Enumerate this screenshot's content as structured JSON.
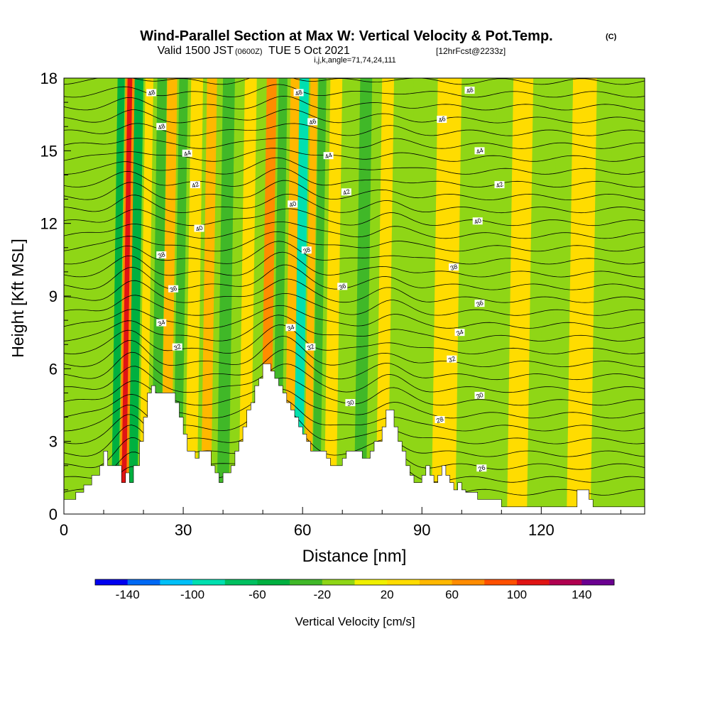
{
  "title": {
    "main": "Wind-Parallel Section at Max W: Vertical Velocity & Pot.Temp.",
    "copyright": "(C)",
    "valid_prefix": "Valid 1500 JST",
    "valid_utc": "(0600Z)",
    "valid_suffix": "TUE 5 Oct 2021",
    "forecast": "[12hrFcst@2233z]",
    "params": "i,j,k,angle=71,74,24,111"
  },
  "colors": {
    "background_field": "#8fd616",
    "updraft": "#fff200",
    "strong_updraft": "#ffc20e",
    "downdraft": "#47b82e",
    "terrain": "#ffffff",
    "isentrope": "#000000"
  },
  "chart_data": {
    "type": "heatmap",
    "xlabel": "Distance [nm]",
    "ylabel": "Height [Kft MSL]",
    "xlim": [
      0,
      146
    ],
    "ylim": [
      0,
      18
    ],
    "xticks": [
      "0",
      "30",
      "60",
      "90",
      "120"
    ],
    "yticks": [
      "0",
      "3",
      "6",
      "9",
      "12",
      "15",
      "18"
    ],
    "terrain_profile": [
      [
        0,
        0.6
      ],
      [
        3,
        0.6
      ],
      [
        3,
        0.9
      ],
      [
        5,
        0.9
      ],
      [
        5,
        1.2
      ],
      [
        7,
        1.2
      ],
      [
        7,
        1.6
      ],
      [
        9,
        1.6
      ],
      [
        9,
        2.0
      ],
      [
        10,
        2.0
      ],
      [
        10,
        2.6
      ],
      [
        11,
        2.6
      ],
      [
        11,
        2.0
      ],
      [
        14.5,
        2.0
      ],
      [
        14.5,
        1.3
      ],
      [
        15.5,
        1.3
      ],
      [
        15.5,
        1.7
      ],
      [
        16.5,
        1.7
      ],
      [
        16.5,
        1.3
      ],
      [
        17.5,
        1.3
      ],
      [
        17.5,
        2.0
      ],
      [
        19,
        2.0
      ],
      [
        19,
        3.0
      ],
      [
        20,
        3.0
      ],
      [
        20,
        4.0
      ],
      [
        21,
        4.0
      ],
      [
        21,
        5.0
      ],
      [
        22,
        5.0
      ],
      [
        22,
        5.3
      ],
      [
        23,
        5.3
      ],
      [
        23,
        5.0
      ],
      [
        28,
        5.0
      ],
      [
        28,
        4.6
      ],
      [
        29,
        4.6
      ],
      [
        29,
        4.0
      ],
      [
        30,
        4.0
      ],
      [
        30,
        3.3
      ],
      [
        31,
        3.3
      ],
      [
        31,
        2.6
      ],
      [
        33,
        2.6
      ],
      [
        33,
        2.3
      ],
      [
        34,
        2.3
      ],
      [
        34,
        2.6
      ],
      [
        37,
        2.6
      ],
      [
        37,
        2.0
      ],
      [
        38,
        2.0
      ],
      [
        38,
        1.7
      ],
      [
        39,
        1.7
      ],
      [
        39,
        1.3
      ],
      [
        40,
        1.3
      ],
      [
        40,
        1.7
      ],
      [
        42,
        1.7
      ],
      [
        42,
        2.0
      ],
      [
        43,
        2.0
      ],
      [
        43,
        2.6
      ],
      [
        44,
        2.6
      ],
      [
        44,
        3.0
      ],
      [
        45,
        3.0
      ],
      [
        45,
        3.6
      ],
      [
        46,
        3.6
      ],
      [
        46,
        4.3
      ],
      [
        47,
        4.3
      ],
      [
        47,
        4.6
      ],
      [
        48,
        4.6
      ],
      [
        48,
        5.3
      ],
      [
        49,
        5.3
      ],
      [
        49,
        5.6
      ],
      [
        50,
        5.6
      ],
      [
        50,
        6.2
      ],
      [
        52,
        6.2
      ],
      [
        52,
        5.9
      ],
      [
        53,
        5.9
      ],
      [
        53,
        5.6
      ],
      [
        54,
        5.6
      ],
      [
        54,
        5.3
      ],
      [
        55,
        5.3
      ],
      [
        55,
        5.0
      ],
      [
        56,
        5.0
      ],
      [
        56,
        4.6
      ],
      [
        57,
        4.6
      ],
      [
        57,
        4.3
      ],
      [
        58,
        4.3
      ],
      [
        58,
        4.0
      ],
      [
        59,
        4.0
      ],
      [
        59,
        3.6
      ],
      [
        60,
        3.6
      ],
      [
        60,
        3.3
      ],
      [
        61,
        3.3
      ],
      [
        61,
        3.0
      ],
      [
        62,
        3.0
      ],
      [
        62,
        2.6
      ],
      [
        66,
        2.6
      ],
      [
        66,
        2.3
      ],
      [
        67,
        2.3
      ],
      [
        67,
        2.0
      ],
      [
        70,
        2.0
      ],
      [
        70,
        2.3
      ],
      [
        71,
        2.3
      ],
      [
        71,
        2.6
      ],
      [
        75,
        2.6
      ],
      [
        75,
        2.3
      ],
      [
        77,
        2.3
      ],
      [
        77,
        2.6
      ],
      [
        78,
        2.6
      ],
      [
        78,
        3.0
      ],
      [
        80,
        3.0
      ],
      [
        80,
        3.6
      ],
      [
        81,
        3.6
      ],
      [
        81,
        4.3
      ],
      [
        83,
        4.3
      ],
      [
        83,
        3.6
      ],
      [
        84,
        3.6
      ],
      [
        84,
        3.0
      ],
      [
        85,
        3.0
      ],
      [
        85,
        2.6
      ],
      [
        86,
        2.6
      ],
      [
        86,
        2.0
      ],
      [
        87,
        2.0
      ],
      [
        87,
        1.6
      ],
      [
        88,
        1.6
      ],
      [
        88,
        1.3
      ],
      [
        90,
        1.3
      ],
      [
        90,
        1.6
      ],
      [
        91,
        1.6
      ],
      [
        91,
        2.0
      ],
      [
        92,
        2.0
      ],
      [
        92,
        1.6
      ],
      [
        93,
        1.6
      ],
      [
        93,
        1.3
      ],
      [
        94,
        1.3
      ],
      [
        94,
        1.6
      ],
      [
        95,
        1.6
      ],
      [
        95,
        2.0
      ],
      [
        96,
        2.0
      ],
      [
        96,
        1.6
      ],
      [
        97,
        1.6
      ],
      [
        97,
        1.3
      ],
      [
        98,
        1.3
      ],
      [
        98,
        1.0
      ],
      [
        99,
        1.0
      ],
      [
        99,
        1.3
      ],
      [
        100,
        1.3
      ],
      [
        100,
        1.0
      ],
      [
        101,
        1.0
      ],
      [
        101,
        0.9
      ],
      [
        104,
        0.9
      ],
      [
        104,
        0.6
      ],
      [
        110,
        0.6
      ],
      [
        110,
        0.3
      ],
      [
        129,
        0.3
      ],
      [
        129,
        1.0
      ],
      [
        132,
        1.0
      ],
      [
        132,
        0.6
      ],
      [
        133,
        0.6
      ],
      [
        133,
        0.3
      ],
      [
        146,
        0.3
      ]
    ],
    "isentropes": {
      "levels": [
        26,
        28,
        30,
        32,
        34,
        36,
        38,
        40,
        42,
        44,
        46,
        48
      ],
      "labels": [
        {
          "text": "48",
          "x": 22,
          "y": 17.4
        },
        {
          "text": "48",
          "x": 24.5,
          "y": 16.0
        },
        {
          "text": "44",
          "x": 31,
          "y": 14.9
        },
        {
          "text": "42",
          "x": 33,
          "y": 13.6
        },
        {
          "text": "40",
          "x": 34,
          "y": 11.8
        },
        {
          "text": "38",
          "x": 24.5,
          "y": 10.7
        },
        {
          "text": "36",
          "x": 27.5,
          "y": 9.3
        },
        {
          "text": "34",
          "x": 24.5,
          "y": 7.9
        },
        {
          "text": "32",
          "x": 28.5,
          "y": 6.9
        },
        {
          "text": "48",
          "x": 59,
          "y": 17.4
        },
        {
          "text": "46",
          "x": 62.5,
          "y": 16.2
        },
        {
          "text": "44",
          "x": 66.5,
          "y": 14.8
        },
        {
          "text": "42",
          "x": 71,
          "y": 13.3
        },
        {
          "text": "40",
          "x": 57.5,
          "y": 12.8
        },
        {
          "text": "38",
          "x": 61,
          "y": 10.9
        },
        {
          "text": "36",
          "x": 70,
          "y": 9.4
        },
        {
          "text": "34",
          "x": 57,
          "y": 7.7
        },
        {
          "text": "32",
          "x": 62,
          "y": 6.9
        },
        {
          "text": "30",
          "x": 72,
          "y": 4.6
        },
        {
          "text": "28",
          "x": 94.5,
          "y": 3.9
        },
        {
          "text": "26",
          "x": 105,
          "y": 1.9
        },
        {
          "text": "48",
          "x": 102,
          "y": 17.5
        },
        {
          "text": "46",
          "x": 95,
          "y": 16.3
        },
        {
          "text": "44",
          "x": 104.5,
          "y": 15.0
        },
        {
          "text": "42",
          "x": 109.5,
          "y": 13.6
        },
        {
          "text": "40",
          "x": 104,
          "y": 12.1
        },
        {
          "text": "38",
          "x": 98,
          "y": 10.2
        },
        {
          "text": "36",
          "x": 104.5,
          "y": 8.7
        },
        {
          "text": "34",
          "x": 99.5,
          "y": 7.5
        },
        {
          "text": "32",
          "x": 97.5,
          "y": 6.4
        },
        {
          "text": "30",
          "x": 104.5,
          "y": 4.9
        }
      ]
    },
    "shading_bands": [
      {
        "x": 13.5,
        "w": 1.8,
        "value": -60,
        "kind": "down"
      },
      {
        "x": 15.5,
        "w": 2.4,
        "value": 60,
        "kind": "up"
      },
      {
        "x": 16.0,
        "w": 1.2,
        "value": 100,
        "kind": "up"
      },
      {
        "x": 17.8,
        "w": 2.2,
        "value": -60,
        "kind": "down"
      },
      {
        "x": 20.5,
        "w": 2.0,
        "value": 20,
        "kind": "up"
      },
      {
        "x": 23.5,
        "w": 2.4,
        "value": -40,
        "kind": "down"
      },
      {
        "x": 26.0,
        "w": 2.5,
        "value": 40,
        "kind": "up"
      },
      {
        "x": 29.0,
        "w": 2.2,
        "value": -40,
        "kind": "down"
      },
      {
        "x": 32.0,
        "w": 3.0,
        "value": 20,
        "kind": "up"
      },
      {
        "x": 36.0,
        "w": 2.5,
        "value": 40,
        "kind": "up"
      },
      {
        "x": 40.0,
        "w": 3.0,
        "value": -40,
        "kind": "down"
      },
      {
        "x": 45.5,
        "w": 3.0,
        "value": 20,
        "kind": "up"
      },
      {
        "x": 51.0,
        "w": 2.5,
        "value": 60,
        "kind": "up"
      },
      {
        "x": 54.0,
        "w": 2.2,
        "value": -40,
        "kind": "down"
      },
      {
        "x": 57.0,
        "w": 2.2,
        "value": 40,
        "kind": "up"
      },
      {
        "x": 59.3,
        "w": 2.3,
        "value": -100,
        "kind": "down"
      },
      {
        "x": 62.0,
        "w": 1.8,
        "value": 40,
        "kind": "up"
      },
      {
        "x": 64.0,
        "w": 2.0,
        "value": -40,
        "kind": "down"
      },
      {
        "x": 67.0,
        "w": 3.0,
        "value": 20,
        "kind": "up"
      },
      {
        "x": 74.5,
        "w": 3.0,
        "value": -40,
        "kind": "down"
      },
      {
        "x": 80.0,
        "w": 3.0,
        "value": 20,
        "kind": "up"
      },
      {
        "x": 85.5,
        "w": 2.5,
        "value": -20,
        "kind": "down"
      },
      {
        "x": 94.0,
        "w": 6.0,
        "value": 20,
        "kind": "up"
      },
      {
        "x": 106.0,
        "w": 3.0,
        "value": -20,
        "kind": "down"
      },
      {
        "x": 113.0,
        "w": 5.0,
        "value": 20,
        "kind": "up"
      },
      {
        "x": 121.0,
        "w": 3.0,
        "value": -20,
        "kind": "down"
      },
      {
        "x": 128.0,
        "w": 6.0,
        "value": 20,
        "kind": "up"
      },
      {
        "x": 138.0,
        "w": 3.0,
        "value": -20,
        "kind": "down"
      }
    ],
    "colorbar": {
      "label": "Vertical Velocity [cm/s]",
      "min": -160,
      "max": 160,
      "step": 20,
      "tick_labels": [
        "-140",
        "-100",
        "-60",
        "-20",
        "20",
        "60",
        "100",
        "140"
      ],
      "colors": [
        "#0000f0",
        "#0069f5",
        "#00c0f8",
        "#00e0b0",
        "#00c060",
        "#00b040",
        "#40b828",
        "#8fd616",
        "#f0f000",
        "#ffdc00",
        "#ffb800",
        "#ff8c00",
        "#ff5000",
        "#e01414",
        "#b00050",
        "#6a0090"
      ]
    }
  }
}
